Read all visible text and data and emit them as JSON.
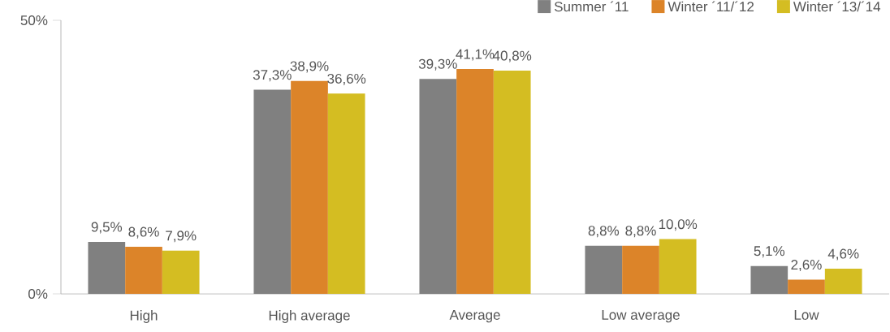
{
  "chart_data": {
    "type": "bar",
    "categories": [
      "High",
      "High average",
      "Average",
      "Low average",
      "Low"
    ],
    "series": [
      {
        "name": "Summer ´11",
        "color": "#808080",
        "values": [
          9.5,
          37.3,
          39.3,
          8.8,
          5.1
        ],
        "value_labels": [
          "9,5%",
          "37,3%",
          "39,3%",
          "8,8%",
          "5,1%"
        ]
      },
      {
        "name": "Winter ´11/´12",
        "color": "#dc8429",
        "values": [
          8.6,
          38.9,
          41.1,
          8.8,
          2.6
        ],
        "value_labels": [
          "8,6%",
          "38,9%",
          "41,1%",
          "8,8%",
          "2,6%"
        ]
      },
      {
        "name": "Winter ´13/´14",
        "color": "#d4bd22",
        "values": [
          7.9,
          36.6,
          40.8,
          10.0,
          4.6
        ],
        "value_labels": [
          "7,9%",
          "36,6%",
          "40,8%",
          "10,0%",
          "4,6%"
        ]
      }
    ],
    "ylim": [
      0,
      50
    ],
    "yticks": [
      {
        "value": 0,
        "label": "0%"
      },
      {
        "value": 50,
        "label": "50%"
      }
    ],
    "legend": "top right"
  }
}
